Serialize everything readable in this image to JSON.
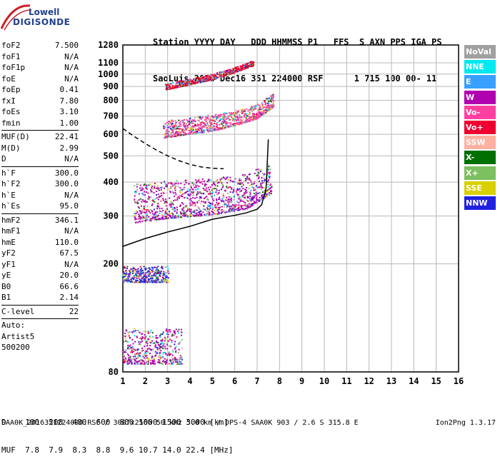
{
  "logo": {
    "line1": "Lowell",
    "line2": "DIGISONDE"
  },
  "header": {
    "labels": "Station YYYY DAY   DDD HHMMSS P1   FFS  S AXN PPS IGA PS",
    "values": "SaoLuis 2016 Dec16 351 224000 RSF      1 715 100 00- 11"
  },
  "params": {
    "group1": [
      {
        "name": "foF2",
        "value": "7.500"
      },
      {
        "name": "foF1",
        "value": "N/A"
      },
      {
        "name": "foF1p",
        "value": "N/A"
      },
      {
        "name": "foE",
        "value": "N/A"
      },
      {
        "name": "foEp",
        "value": "0.41"
      },
      {
        "name": "fxI",
        "value": "7.80"
      },
      {
        "name": "foEs",
        "value": "3.10"
      },
      {
        "name": "fmin",
        "value": "1.00"
      }
    ],
    "group2": [
      {
        "name": "MUF(D)",
        "value": "22.41"
      },
      {
        "name": "M(D)",
        "value": "2.99"
      },
      {
        "name": "D",
        "value": "N/A"
      }
    ],
    "group3": [
      {
        "name": "h`F",
        "value": "300.0"
      },
      {
        "name": "h`F2",
        "value": "300.0"
      },
      {
        "name": "h`E",
        "value": "N/A"
      },
      {
        "name": "h`Es",
        "value": "95.0"
      }
    ],
    "group4": [
      {
        "name": "hmF2",
        "value": "346.1"
      },
      {
        "name": "hmF1",
        "value": "N/A"
      },
      {
        "name": "hmE",
        "value": "110.0"
      },
      {
        "name": "yF2",
        "value": "67.5"
      },
      {
        "name": "yF1",
        "value": "N/A"
      },
      {
        "name": "yE",
        "value": "20.0"
      },
      {
        "name": "B0",
        "value": "66.6"
      },
      {
        "name": "B1",
        "value": "2.14"
      }
    ],
    "group5": [
      {
        "name": "C-level",
        "value": "22"
      }
    ],
    "auto_label": "Auto:",
    "artist": "Artist5",
    "artist_version": "500200"
  },
  "legend": [
    {
      "label": "NoVal",
      "color": "#a0a0a0"
    },
    {
      "label": "NNE",
      "color": "#00e8f0"
    },
    {
      "label": "E",
      "color": "#3aa0ff"
    },
    {
      "label": "W",
      "color": "#b000b0"
    },
    {
      "label": "Vo-",
      "color": "#ff40a0"
    },
    {
      "label": "Vo+",
      "color": "#ee0030"
    },
    {
      "label": "SSW",
      "color": "#ffb0a0"
    },
    {
      "label": "X-",
      "color": "#007000"
    },
    {
      "label": "X+",
      "color": "#7cc060"
    },
    {
      "label": "SSE",
      "color": "#d8d000"
    },
    {
      "label": "NNW",
      "color": "#2020e0"
    }
  ],
  "muf_table": {
    "row_d": "D    100  200  400  600  800 1000 1500 3000 [km]",
    "row_muf": "MUF  7.8  7.9  8.3  8.8  9.6 10.7 14.0 22.4 [MHz]"
  },
  "footer": {
    "file_info": "SAA0K_2016351224000.RSF / 300fx256h 50 kHz 5.0 km / DPS-4 SAA0K 903 / 2.6 S 315.8 E",
    "version": "Ion2Png 1.3.17"
  },
  "chart_data": {
    "type": "scatter",
    "xlim": [
      1,
      16
    ],
    "ylim": [
      80,
      1280
    ],
    "x_ticks": [
      1,
      2,
      3,
      4,
      5,
      6,
      7,
      8,
      9,
      10,
      11,
      12,
      13,
      14,
      15,
      16
    ],
    "y_ticks": [
      80,
      200,
      300,
      400,
      500,
      600,
      700,
      800,
      900,
      1000,
      1100,
      1280
    ],
    "y_scale": "log",
    "grid": true,
    "legend_position": "right",
    "profile_curve": {
      "x": [
        1.0,
        2.0,
        3.0,
        4.0,
        5.0,
        6.0,
        6.5,
        7.0,
        7.2,
        7.4,
        7.5
      ],
      "y": [
        232,
        248,
        262,
        275,
        292,
        302,
        308,
        318,
        330,
        380,
        575
      ]
    },
    "extrapolated_profile": {
      "x": [
        1.0,
        1.5,
        2.0,
        2.5,
        3.0,
        3.5,
        4.0,
        4.5,
        5.0,
        5.5
      ],
      "y": [
        630,
        590,
        555,
        525,
        500,
        480,
        465,
        455,
        450,
        448
      ]
    },
    "echo_traces": [
      {
        "name": "O-trace F2 1st hop",
        "color": "W",
        "xrange": [
          1.5,
          7.6
        ],
        "ymin_at": [
          [
            1.5,
            285
          ],
          [
            3,
            296
          ],
          [
            5,
            305
          ],
          [
            6.5,
            320
          ],
          [
            7.5,
            360
          ]
        ],
        "spread": 110
      },
      {
        "name": "F2 2nd hop",
        "color": "Vo-",
        "xrange": [
          2.8,
          7.7
        ],
        "ymin_at": [
          [
            2.8,
            585
          ],
          [
            4,
            605
          ],
          [
            5,
            620
          ],
          [
            6,
            650
          ],
          [
            7,
            690
          ],
          [
            7.7,
            760
          ]
        ],
        "spread": 90
      },
      {
        "name": "F2 3rd hop",
        "color": "Vo+",
        "xrange": [
          2.9,
          6.8
        ],
        "ymin_at": [
          [
            2.9,
            880
          ],
          [
            4,
            920
          ],
          [
            5,
            960
          ],
          [
            6,
            1020
          ],
          [
            6.8,
            1080
          ]
        ],
        "spread": 45
      },
      {
        "name": "Es layer",
        "color": "W",
        "xrange": [
          1.0,
          3.6
        ],
        "ymin_at": [
          [
            1.0,
            86
          ],
          [
            2.0,
            86
          ],
          [
            3.0,
            86
          ],
          [
            3.6,
            86
          ]
        ],
        "spread": 30
      },
      {
        "name": "Es 2nd hop",
        "color": "NNW",
        "xrange": [
          1.0,
          3.0
        ],
        "ymin_at": [
          [
            1.0,
            172
          ],
          [
            2.0,
            172
          ],
          [
            3.0,
            172
          ]
        ],
        "spread": 25
      }
    ]
  }
}
